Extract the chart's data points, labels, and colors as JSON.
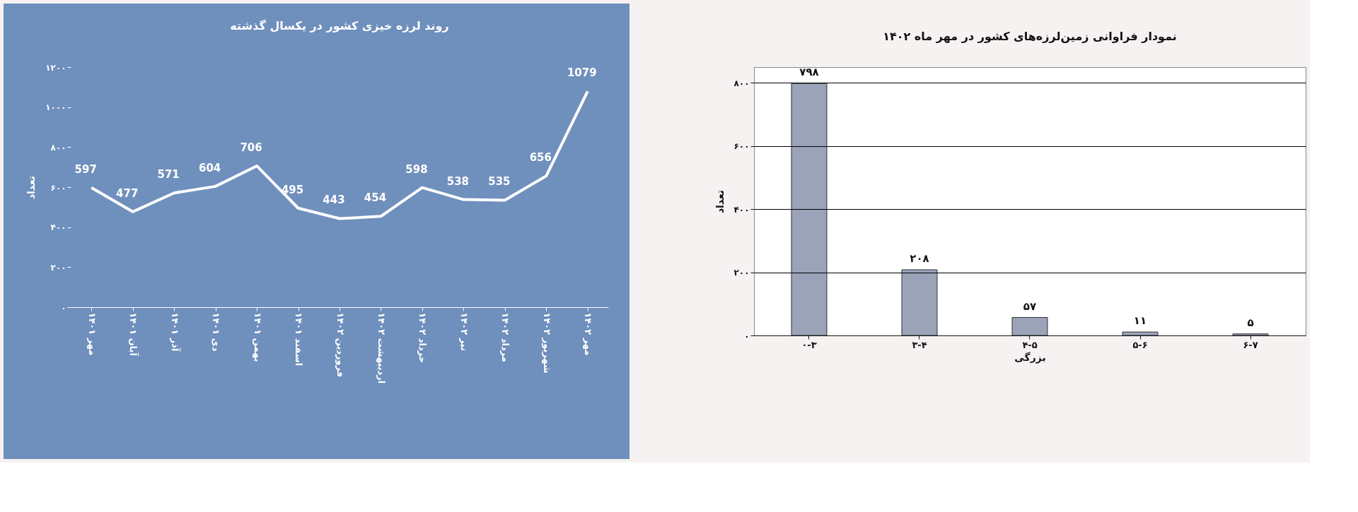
{
  "chart_data": [
    {
      "type": "line",
      "title": "روند لرزه خیزی کشور در یکسال گذشته",
      "ylabel": "تعداد",
      "categories": [
        "مهر ۱۴۰۱",
        "آبان ۱۴۰۱",
        "آذر ۱۴۰۱",
        "دی ۱۴۰۱",
        "بهمن ۱۴۰۱",
        "اسفند ۱۴۰۱",
        "فروردین ۱۴۰۲",
        "اردیبهشت ۱۴۰۲",
        "خرداد ۱۴۰۲",
        "تیر ۱۴۰۲",
        "مرداد ۱۴۰۲",
        "شهریور ۱۴۰۲",
        "مهر ۱۴۰۲"
      ],
      "series": [
        {
          "color": "#ffffff",
          "values": [
            597,
            477,
            571,
            604,
            706,
            495,
            443,
            454,
            598,
            538,
            535,
            656,
            1079
          ]
        }
      ],
      "ylim": [
        0,
        1200
      ],
      "yticks": [
        {
          "value": 0,
          "label": "۰"
        },
        {
          "value": 200,
          "label": "۲۰۰"
        },
        {
          "value": 400,
          "label": "۴۰۰"
        },
        {
          "value": 600,
          "label": "۶۰۰"
        },
        {
          "value": 800,
          "label": "۸۰۰"
        },
        {
          "value": 1000,
          "label": "۱۰۰۰"
        },
        {
          "value": 1200,
          "label": "۱۲۰۰"
        }
      ],
      "data_labels": true,
      "grid": false,
      "marker": "none",
      "line_style": "solid"
    },
    {
      "type": "bar",
      "title": "نمودار فراوانی زمین‌لرزه‌های کشور در مهر ماه ۱۴۰۲",
      "xlabel": "بزرگی",
      "ylabel": "تعداد",
      "categories": [
        "۰-۳",
        "۳-۴",
        "۴-۵",
        "۵-۶",
        "۶-۷"
      ],
      "series": [
        {
          "color": "#9aa3b8",
          "values": [
            798,
            208,
            57,
            11,
            5
          ],
          "value_labels": [
            "۷۹۸",
            "۲۰۸",
            "۵۷",
            "۱۱",
            "۵"
          ]
        }
      ],
      "ylim": [
        0,
        850
      ],
      "yticks": [
        {
          "value": 0,
          "label": "۰"
        },
        {
          "value": 200,
          "label": "۲۰۰"
        },
        {
          "value": 400,
          "label": "۴۰۰"
        },
        {
          "value": 600,
          "label": "۶۰۰"
        },
        {
          "value": 800,
          "label": "۸۰۰"
        }
      ],
      "grid": "y"
    }
  ]
}
